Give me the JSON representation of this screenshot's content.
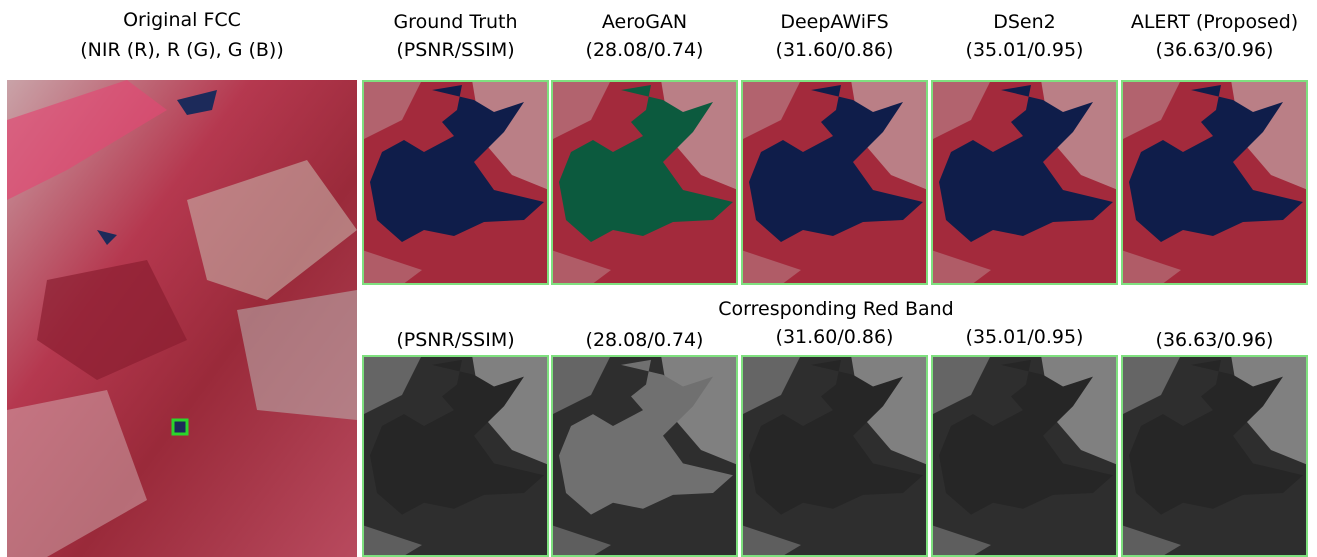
{
  "left_panel": {
    "title": "Original FCC",
    "subtitle": "(NIR (R), R (G), G (B))"
  },
  "columns": [
    {
      "title": "Ground Truth",
      "top_metrics": "(PSNR/SSIM)",
      "bottom_metrics": "(PSNR/SSIM)"
    },
    {
      "title": "AeroGAN",
      "top_metrics": "(28.08/0.74)",
      "bottom_metrics": "(28.08/0.74)"
    },
    {
      "title": "DeepAWiFS",
      "top_metrics": "(31.60/0.86)",
      "bottom_metrics": "(31.60/0.86)"
    },
    {
      "title": "DSen2",
      "top_metrics": "(35.01/0.95)",
      "bottom_metrics": "(35.01/0.95)"
    },
    {
      "title": "ALERT (Proposed)",
      "top_metrics": "(36.63/0.96)",
      "bottom_metrics": "(36.63/0.96)"
    }
  ],
  "bottom_row_title": "Corresponding Red Band"
}
